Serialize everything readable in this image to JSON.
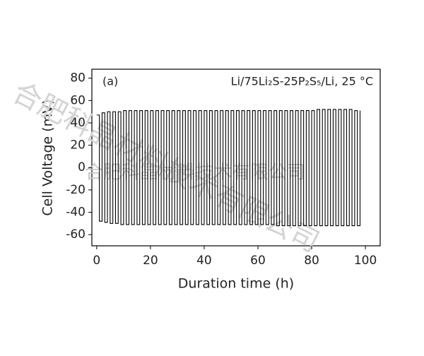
{
  "chart_data": {
    "type": "line",
    "drawstyle": "steps-post",
    "ylabel": "Cell Voltage  (mV)",
    "xlabel": "Duration time  (h)",
    "annotations": [
      "(a)",
      "Li/75Li₂S-25P₂S₅/Li, 25 °C"
    ],
    "watermark": "合肥科晶材料技术有限公司",
    "xlim": [
      -1.8,
      105.5
    ],
    "ylim": [
      -70,
      88
    ],
    "xticks": [
      0,
      20,
      40,
      60,
      80,
      100
    ],
    "yticks": [
      -60,
      -40,
      -20,
      0,
      20,
      40,
      60,
      80
    ],
    "grid": false,
    "series": [
      {
        "color": "#000000",
        "x": [
          0,
          1,
          2,
          3,
          4,
          5,
          6,
          7,
          8,
          9,
          10,
          11,
          12,
          13,
          14,
          15,
          16,
          17,
          18,
          19,
          20,
          21,
          22,
          23,
          24,
          25,
          26,
          27,
          28,
          29,
          30,
          31,
          32,
          33,
          34,
          35,
          36,
          37,
          38,
          39,
          40,
          41,
          42,
          43,
          44,
          45,
          46,
          47,
          48,
          49,
          50,
          51,
          52,
          53,
          54,
          55,
          56,
          57,
          58,
          59,
          60,
          61,
          62,
          63,
          64,
          65,
          66,
          67,
          68,
          69,
          70,
          71,
          72,
          73,
          74,
          75,
          76,
          77,
          78,
          79,
          80,
          81,
          82,
          83,
          84,
          85,
          86,
          87,
          88,
          89,
          90,
          91,
          92,
          93,
          94,
          95,
          96,
          97,
          98
        ],
        "values": [
          47,
          -48,
          49,
          -49,
          50,
          -50,
          50,
          -50,
          50,
          -51,
          51,
          -51,
          51,
          -51,
          51,
          -51,
          51,
          -51,
          51,
          -51,
          51,
          -51,
          51,
          -51,
          51,
          -51,
          51,
          -51,
          51,
          -51,
          51,
          -51,
          51,
          -51,
          51,
          -51,
          51,
          -51,
          51,
          -51,
          51,
          -51,
          51,
          -51,
          51,
          -51,
          51,
          -51,
          51,
          -51,
          51,
          -51,
          51,
          -51,
          51,
          -51,
          51,
          -51,
          51,
          -51,
          51,
          -51,
          51,
          -51,
          51,
          -51,
          51,
          -52,
          51,
          -52,
          51,
          -52,
          51,
          -52,
          51,
          -52,
          51,
          -52,
          51,
          -52,
          51,
          -52,
          52,
          -52,
          52,
          -52,
          52,
          -52,
          52,
          -52,
          52,
          -52,
          52,
          -52,
          52,
          -52,
          51,
          -52,
          51
        ]
      }
    ]
  }
}
